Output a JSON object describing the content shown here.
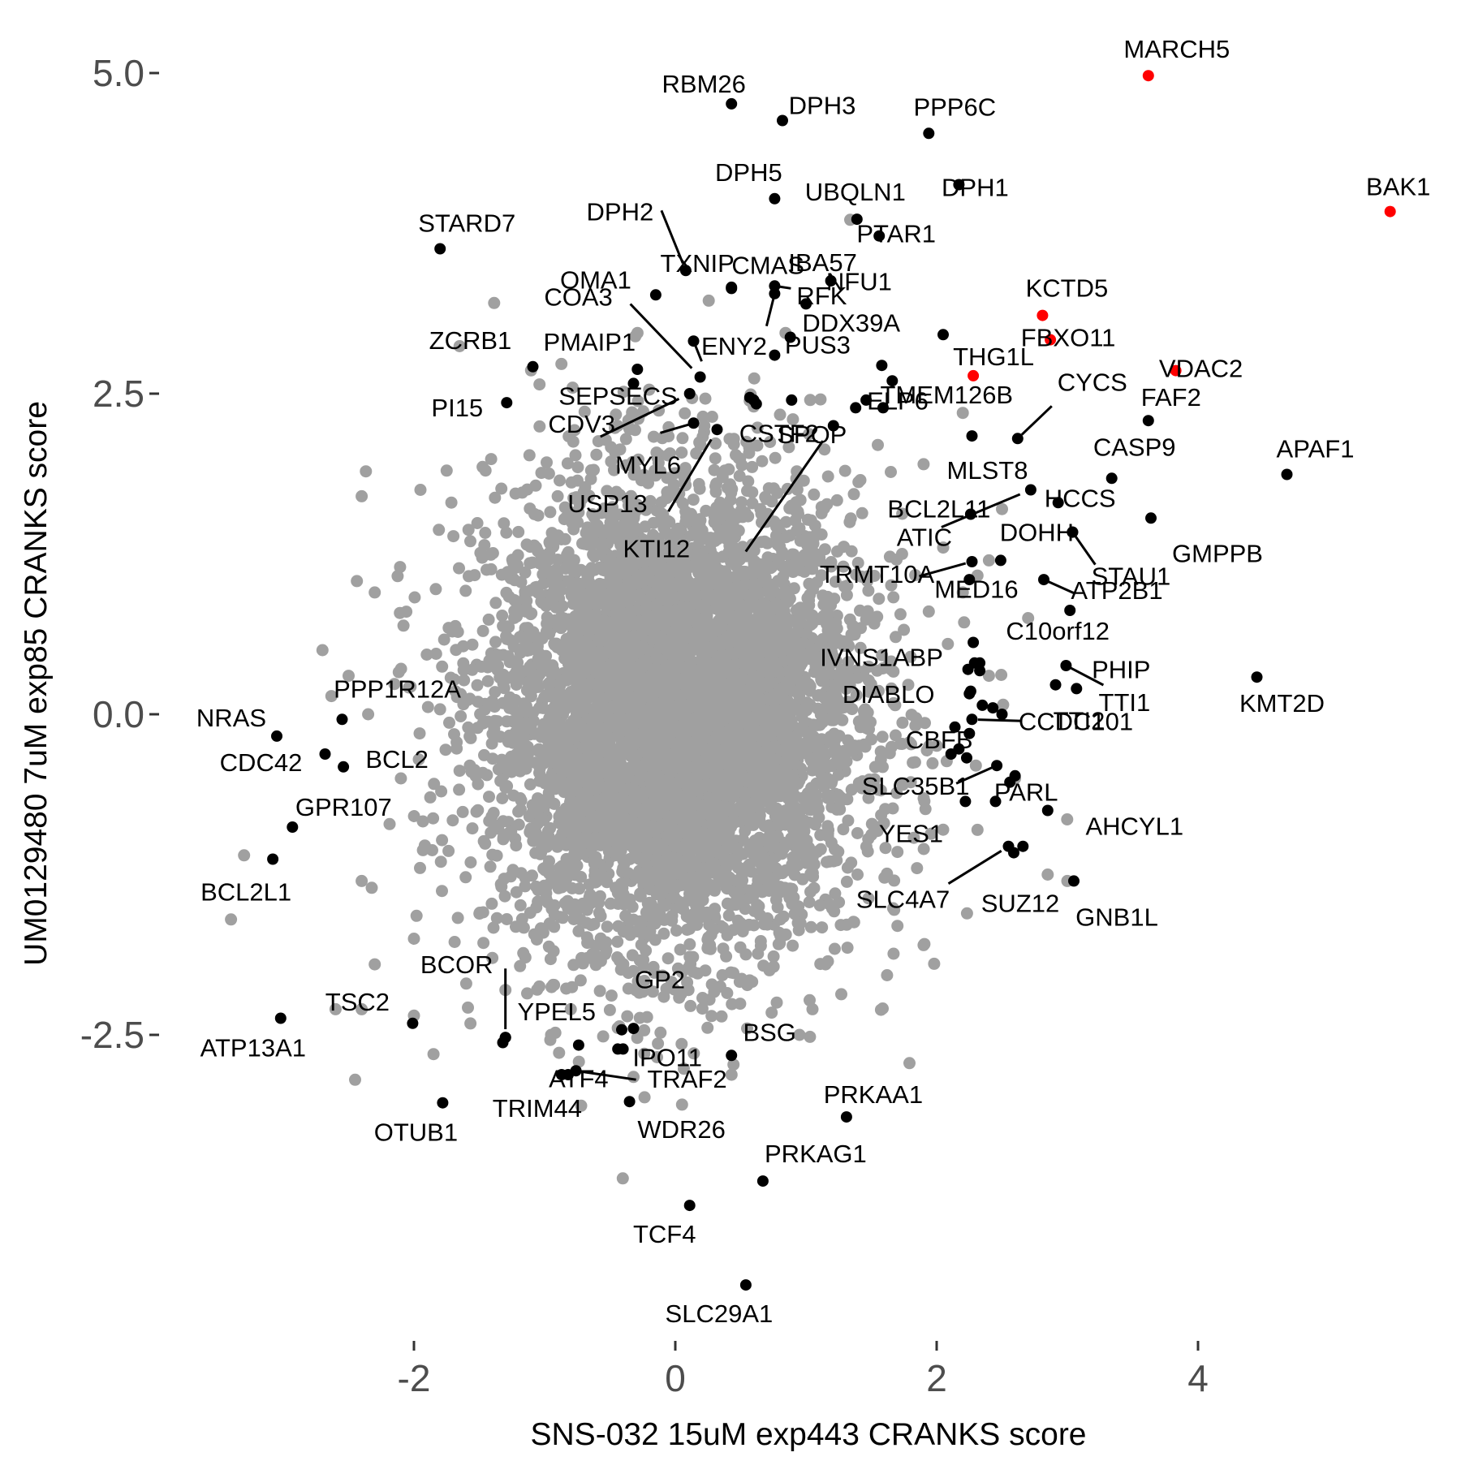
{
  "chart_data": {
    "type": "scatter",
    "xlabel": "SNS-032 15uM exp443 CRANKS score",
    "ylabel": "UM0129480 7uM exp85 CRANKS score",
    "xlim": [
      -2.6,
      5.6
    ],
    "ylim": [
      -4.9,
      5.3
    ],
    "x_ticks": [
      -2,
      0,
      2,
      4
    ],
    "x_tick_labels": [
      "-2",
      "0",
      "2",
      "4"
    ],
    "y_ticks": [
      5.0,
      2.5,
      0.0,
      -2.5
    ],
    "y_tick_labels": [
      "5.0",
      "2.5",
      "0.0",
      "-2.5"
    ],
    "grid": false,
    "colors": {
      "background_points": "#a0a0a0",
      "highlight_points": "#ff0000",
      "labeled_points": "#000000"
    },
    "background_cloud": {
      "description_count": 6000,
      "center_x": 0.0,
      "center_y": 0.0,
      "sd_x": 0.7,
      "sd_y": 0.9
    },
    "background_outliers": [
      [
        -1.75,
        1.9
      ],
      [
        -1.95,
        1.75
      ],
      [
        -2.4,
        1.7
      ],
      [
        -2.3,
        0.95
      ],
      [
        -2.7,
        0.5
      ],
      [
        -2.5,
        0.3
      ],
      [
        -3.3,
        -1.1
      ],
      [
        -3.4,
        -1.6
      ],
      [
        -2.4,
        -1.3
      ],
      [
        -2.0,
        -1.75
      ],
      [
        -2.3,
        -1.95
      ],
      [
        -2.6,
        -2.3
      ],
      [
        -2.4,
        -2.3
      ],
      [
        -2.0,
        -2.35
      ],
      [
        -1.85,
        -2.65
      ],
      [
        -2.45,
        -2.85
      ],
      [
        -1.6,
        -2.1
      ],
      [
        -1.4,
        -1.9
      ],
      [
        -1.3,
        -2.15
      ],
      [
        -0.95,
        -2.5
      ],
      [
        -0.8,
        -2.3
      ],
      [
        1.15,
        -1.95
      ],
      [
        1.7,
        -1.65
      ],
      [
        1.9,
        -1.8
      ],
      [
        1.05,
        -2.3
      ],
      [
        0.55,
        -2.45
      ],
      [
        0.95,
        -2.5
      ],
      [
        2.5,
        1.6
      ],
      [
        2.4,
        1.2
      ],
      [
        2.7,
        0.75
      ],
      [
        2.2,
        0.95
      ],
      [
        2.3,
        -0.4
      ],
      [
        2.4,
        0.3
      ],
      [
        2.6,
        -0.5
      ],
      [
        3.0,
        -1.3
      ],
      [
        2.85,
        -1.25
      ],
      [
        2.2,
        2.35
      ],
      [
        1.9,
        1.95
      ],
      [
        2.05,
        1.3
      ],
      [
        0.6,
        2.4
      ],
      [
        0.9,
        2.3
      ],
      [
        -0.9,
        1.7
      ],
      [
        -1.05,
        1.55
      ],
      [
        -2.35,
        0.0
      ],
      [
        -2.1,
        -0.5
      ],
      [
        1.85,
        -1.2
      ],
      [
        2.05,
        -0.9
      ],
      [
        1.55,
        2.1
      ]
    ],
    "labeled_points": [
      {
        "label": "MARCH5",
        "x": 3.62,
        "y": 4.98,
        "highlight": true
      },
      {
        "label": "BAK1",
        "x": 5.47,
        "y": 3.92,
        "highlight": true
      },
      {
        "label": "KCTD5",
        "x": 2.81,
        "y": 3.11,
        "highlight": true
      },
      {
        "label": "FBXO11",
        "x": 2.87,
        "y": 2.92,
        "highlight": true
      },
      {
        "label": "VDAC2",
        "x": 3.83,
        "y": 2.68,
        "highlight": true
      },
      {
        "label": "THG1L",
        "x": 2.28,
        "y": 2.64,
        "highlight": true
      },
      {
        "label": "RBM26",
        "x": 0.43,
        "y": 4.76,
        "highlight": false
      },
      {
        "label": "DPH3",
        "x": 0.82,
        "y": 4.63,
        "highlight": false
      },
      {
        "label": "PPP6C",
        "x": 1.94,
        "y": 4.53,
        "highlight": false
      },
      {
        "label": "DPH5",
        "x": 0.76,
        "y": 4.02,
        "highlight": false
      },
      {
        "label": "UBQLN1",
        "x": 1.39,
        "y": 3.86,
        "highlight": false
      },
      {
        "label": "DPH1",
        "x": 2.17,
        "y": 4.13,
        "highlight": false
      },
      {
        "label": "PTAR1",
        "x": 1.56,
        "y": 3.73,
        "highlight": false
      },
      {
        "label": "STARD7",
        "x": -1.8,
        "y": 3.63,
        "highlight": false
      },
      {
        "label": "DPH2",
        "x": 0.08,
        "y": 3.46,
        "highlight": false
      },
      {
        "label": "CMAS",
        "x": 0.43,
        "y": 3.32,
        "highlight": false
      },
      {
        "label": "OMA1",
        "x": -0.15,
        "y": 3.27,
        "highlight": false
      },
      {
        "label": "IBA57",
        "x": 1.19,
        "y": 3.38,
        "highlight": false
      },
      {
        "label": "NFU1",
        "x": 0.76,
        "y": 3.34,
        "highlight": false
      },
      {
        "label": "RFK",
        "x": 0.76,
        "y": 3.28,
        "highlight": false
      },
      {
        "label": "TXNIP",
        "x": 0.43,
        "y": 3.33,
        "highlight": false
      },
      {
        "label": "COA3",
        "x": 0.19,
        "y": 2.63,
        "highlight": false
      },
      {
        "label": "ZCRB1",
        "x": -1.09,
        "y": 2.71,
        "highlight": false
      },
      {
        "label": "PMAIP1",
        "x": -0.29,
        "y": 2.69,
        "highlight": false
      },
      {
        "label": "ENY2",
        "x": 0.14,
        "y": 2.91,
        "highlight": false
      },
      {
        "label": "DDX39A",
        "x": 0.88,
        "y": 2.94,
        "highlight": false
      },
      {
        "label": "PUS3",
        "x": 0.76,
        "y": 2.8,
        "highlight": false
      },
      {
        "label": "PI15",
        "x": -1.29,
        "y": 2.43,
        "highlight": false
      },
      {
        "label": "SEPSECS",
        "x": -0.32,
        "y": 2.58,
        "highlight": false
      },
      {
        "label": "CDV3",
        "x": 0.11,
        "y": 2.5,
        "highlight": false
      },
      {
        "label": "MYL6",
        "x": 0.14,
        "y": 2.27,
        "highlight": false
      },
      {
        "label": "USP13",
        "x": 0.32,
        "y": 2.22,
        "highlight": false
      },
      {
        "label": "CSTF2",
        "x": 0.57,
        "y": 2.47,
        "highlight": false
      },
      {
        "label": "SPOP",
        "x": 0.89,
        "y": 2.45,
        "highlight": false
      },
      {
        "label": "KTI12",
        "x": 1.21,
        "y": 2.25,
        "highlight": false
      },
      {
        "label": "ELP6",
        "x": 1.59,
        "y": 2.39,
        "highlight": false
      },
      {
        "label": "TMEM126B",
        "x": 1.66,
        "y": 2.6,
        "highlight": false
      },
      {
        "label": "CYCS",
        "x": 2.62,
        "y": 2.15,
        "highlight": false
      },
      {
        "label": "FAF2",
        "x": 3.62,
        "y": 2.29,
        "highlight": false
      },
      {
        "label": "CASP9",
        "x": 3.34,
        "y": 1.84,
        "highlight": false
      },
      {
        "label": "APAF1",
        "x": 4.68,
        "y": 1.87,
        "highlight": false
      },
      {
        "label": "MLST8",
        "x": 2.27,
        "y": 2.17,
        "highlight": false
      },
      {
        "label": "BCL2L11",
        "x": 2.72,
        "y": 1.75,
        "highlight": false
      },
      {
        "label": "HCCS",
        "x": 2.93,
        "y": 1.65,
        "highlight": false
      },
      {
        "label": "GMPPB",
        "x": 3.64,
        "y": 1.53,
        "highlight": false
      },
      {
        "label": "ATIC",
        "x": 2.26,
        "y": 1.56,
        "highlight": false
      },
      {
        "label": "DOHH",
        "x": 3.04,
        "y": 1.42,
        "highlight": false
      },
      {
        "label": "STAU1",
        "x": 3.04,
        "y": 1.42,
        "highlight": false
      },
      {
        "label": "TRMT10A",
        "x": 2.27,
        "y": 1.19,
        "highlight": false
      },
      {
        "label": "MED16",
        "x": 2.49,
        "y": 1.2,
        "highlight": false
      },
      {
        "label": "ATP2B1",
        "x": 2.82,
        "y": 1.05,
        "highlight": false
      },
      {
        "label": "C10orf12",
        "x": 3.02,
        "y": 0.81,
        "highlight": false
      },
      {
        "label": "IVNS1ABP",
        "x": 2.28,
        "y": 0.56,
        "highlight": false
      },
      {
        "label": "PHIP",
        "x": 3.07,
        "y": 0.2,
        "highlight": false
      },
      {
        "label": "KMT2D",
        "x": 4.45,
        "y": 0.29,
        "highlight": false
      },
      {
        "label": "DIABLO",
        "x": 2.29,
        "y": 0.4,
        "highlight": false
      },
      {
        "label": "TTI1",
        "x": 2.99,
        "y": 0.38,
        "highlight": false
      },
      {
        "label": "TTI2",
        "x": 2.91,
        "y": 0.23,
        "highlight": false
      },
      {
        "label": "CBFB",
        "x": 2.43,
        "y": 0.05,
        "highlight": false
      },
      {
        "label": "CCDC101",
        "x": 2.27,
        "y": -0.04,
        "highlight": false
      },
      {
        "label": "SLC35B1",
        "x": 2.46,
        "y": -0.4,
        "highlight": false
      },
      {
        "label": "PARL",
        "x": 2.56,
        "y": -0.53,
        "highlight": false
      },
      {
        "label": "AHCYL1",
        "x": 2.85,
        "y": -0.75,
        "highlight": false
      },
      {
        "label": "YES1",
        "x": 2.22,
        "y": -0.68,
        "highlight": false
      },
      {
        "label": "SLC4A7",
        "x": 2.55,
        "y": -1.03,
        "highlight": false
      },
      {
        "label": "SUZ12",
        "x": 2.59,
        "y": -1.08,
        "highlight": false
      },
      {
        "label": "GNB1L",
        "x": 3.05,
        "y": -1.3,
        "highlight": false
      },
      {
        "label": "NRAS",
        "x": -3.05,
        "y": -0.17,
        "highlight": false
      },
      {
        "label": "PPP1R12A",
        "x": -2.55,
        "y": -0.04,
        "highlight": false
      },
      {
        "label": "CDC42",
        "x": -2.68,
        "y": -0.31,
        "highlight": false
      },
      {
        "label": "BCL2",
        "x": -2.54,
        "y": -0.41,
        "highlight": false
      },
      {
        "label": "GPR107",
        "x": -2.93,
        "y": -0.88,
        "highlight": false
      },
      {
        "label": "BCL2L1",
        "x": -3.08,
        "y": -1.13,
        "highlight": false
      },
      {
        "label": "ATP13A1",
        "x": -3.02,
        "y": -2.37,
        "highlight": false
      },
      {
        "label": "TSC2",
        "x": -2.01,
        "y": -2.41,
        "highlight": false
      },
      {
        "label": "OTUB1",
        "x": -1.78,
        "y": -3.03,
        "highlight": false
      },
      {
        "label": "BCOR",
        "x": -1.3,
        "y": -2.52,
        "highlight": false
      },
      {
        "label": "YPEL5",
        "x": -1.3,
        "y": -2.52,
        "highlight": false
      },
      {
        "label": "ATF4",
        "x": -0.74,
        "y": -2.58,
        "highlight": false
      },
      {
        "label": "GP2",
        "x": -0.41,
        "y": -2.46,
        "highlight": false
      },
      {
        "label": "IPO11",
        "x": -0.44,
        "y": -2.61,
        "highlight": false
      },
      {
        "label": "TRAF2",
        "x": -0.76,
        "y": -2.78,
        "highlight": false
      },
      {
        "label": "TRIM44",
        "x": -0.87,
        "y": -2.81,
        "highlight": false
      },
      {
        "label": "WDR26",
        "x": -0.35,
        "y": -3.02,
        "highlight": false
      },
      {
        "label": "BSG",
        "x": 0.43,
        "y": -2.66,
        "highlight": false
      },
      {
        "label": "PRKAA1",
        "x": 1.31,
        "y": -3.14,
        "highlight": false
      },
      {
        "label": "PRKAG1",
        "x": 0.67,
        "y": -3.64,
        "highlight": false
      },
      {
        "label": "TCF4",
        "x": 0.11,
        "y": -3.83,
        "highlight": false
      },
      {
        "label": "SLC29A1",
        "x": 0.54,
        "y": -4.45,
        "highlight": false
      }
    ],
    "unlabeled_black_points": [
      [
        0.62,
        2.42
      ],
      [
        0.6,
        2.45
      ],
      [
        1.38,
        2.39
      ],
      [
        1.46,
        2.45
      ],
      [
        2.25,
        1.05
      ],
      [
        2.33,
        0.4
      ],
      [
        2.33,
        0.34
      ],
      [
        2.24,
        0.35
      ],
      [
        2.26,
        0.18
      ],
      [
        2.25,
        0.16
      ],
      [
        2.35,
        0.07
      ],
      [
        2.5,
        0.0
      ],
      [
        2.14,
        -0.1
      ],
      [
        2.25,
        -0.15
      ],
      [
        2.17,
        -0.27
      ],
      [
        2.11,
        -0.31
      ],
      [
        2.23,
        -0.34
      ],
      [
        2.6,
        -0.48
      ],
      [
        2.45,
        -0.68
      ],
      [
        2.66,
        -1.03
      ],
      [
        -1.32,
        -2.56
      ],
      [
        -0.82,
        -2.81
      ],
      [
        -0.32,
        -2.45
      ],
      [
        -0.4,
        -2.61
      ],
      [
        1.0,
        3.2
      ],
      [
        2.05,
        2.96
      ],
      [
        1.58,
        2.72
      ]
    ]
  }
}
